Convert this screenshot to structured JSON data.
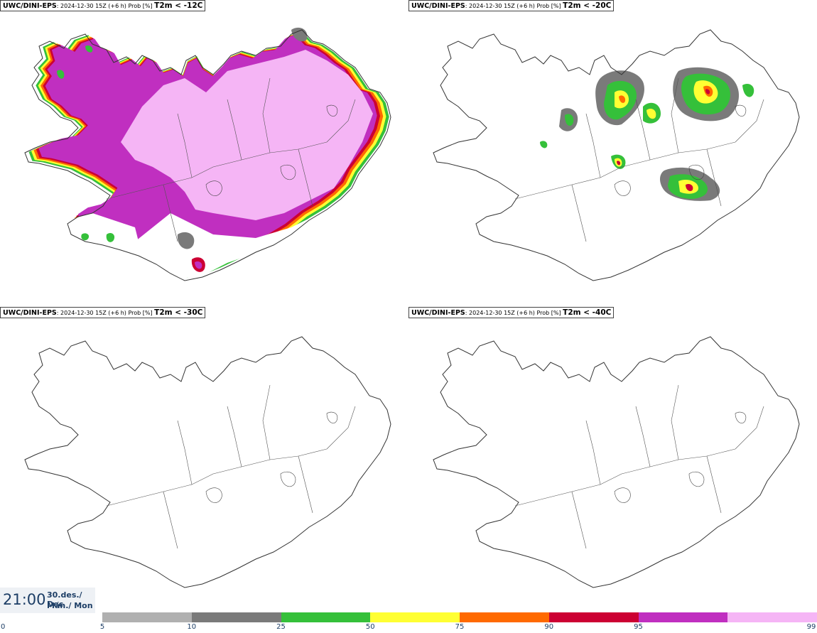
{
  "panels": [
    {
      "model": "UWC/DINI-EPS",
      "sep": ":",
      "info": " 2024-12-30 15Z (+6 h) Prob [%] ",
      "variable": "T2m < -12C"
    },
    {
      "model": "UWC/DINI-EPS",
      "sep": ":",
      "info": " 2024-12-30 15Z (+6 h) Prob [%] ",
      "variable": "T2m < -20C"
    },
    {
      "model": "UWC/DINI-EPS",
      "sep": ":",
      "info": " 2024-12-30 15Z (+6 h) Prob [%] ",
      "variable": "T2m < -30C"
    },
    {
      "model": "UWC/DINI-EPS",
      "sep": ":",
      "info": " 2024-12-30 15Z (+6 h) Prob [%] ",
      "variable": "T2m < -40C"
    }
  ],
  "valid_time": {
    "time": "21:00",
    "date_line1": "30.des./ Dec",
    "date_line2": "Mán./ Mon"
  },
  "colorbar": {
    "ticks": [
      "0",
      "5",
      "10",
      "25",
      "50",
      "75",
      "90",
      "95",
      "99"
    ],
    "colors": [
      "#b0b0b0",
      "#7a7a7a",
      "#35c03a",
      "#ffff33",
      "#ff6a00",
      "#cc0033",
      "#c02fc0",
      "#f5b5f5"
    ]
  },
  "colors": {
    "coast": "#333333",
    "background": "#ffffff",
    "label_text": "#1d3e66"
  }
}
